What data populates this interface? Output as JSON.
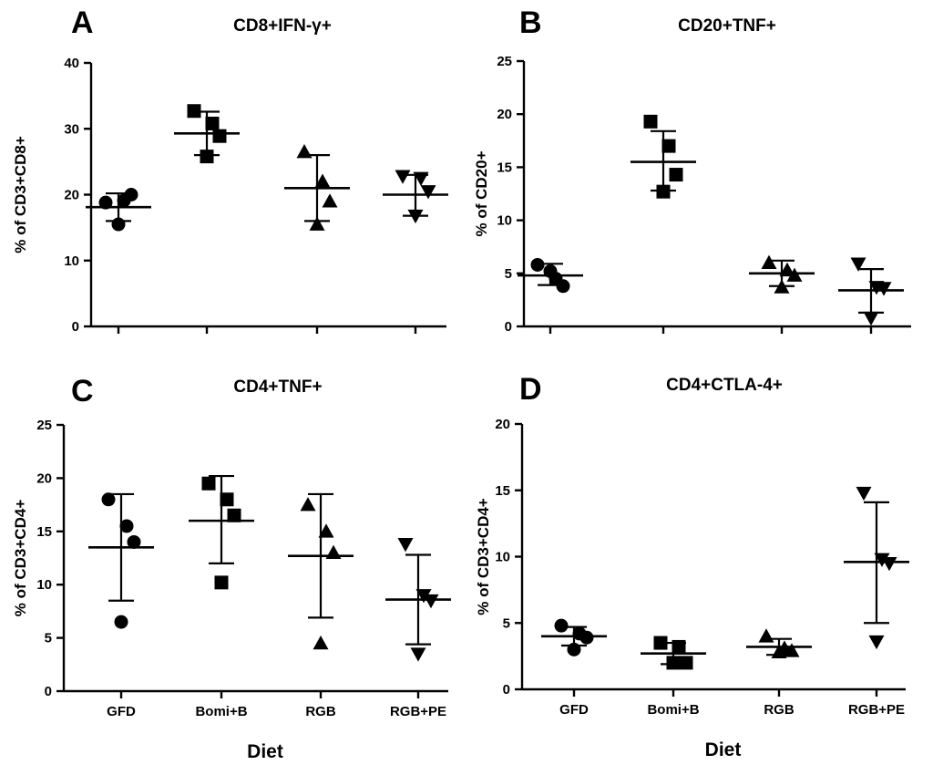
{
  "chart_data": [
    {
      "panel": "A",
      "type": "scatter",
      "title": "CD8+IFN-γ+",
      "ylabel": "% of CD3+CD8+",
      "xlabel": "",
      "ylim": [
        0,
        40
      ],
      "yticks": [
        0,
        10,
        20,
        30,
        40
      ],
      "categories": [
        "GFD",
        "Bomi+B",
        "RGB",
        "RGB+PE"
      ],
      "show_category_labels": false,
      "markers": [
        "circle",
        "square",
        "triangle-up",
        "triangle-down"
      ],
      "groups": [
        {
          "name": "GFD",
          "points": [
            18.8,
            19.1,
            20.0,
            15.5
          ],
          "mean": 18.1,
          "sd_low": 16.0,
          "sd_high": 20.2
        },
        {
          "name": "Bomi+B",
          "points": [
            32.7,
            30.8,
            28.9,
            25.8
          ],
          "mean": 29.3,
          "sd_low": 26.0,
          "sd_high": 32.6
        },
        {
          "name": "RGB",
          "points": [
            26.5,
            22.0,
            19.0,
            15.5
          ],
          "mean": 21.0,
          "sd_low": 16.0,
          "sd_high": 26.0
        },
        {
          "name": "RGB+PE",
          "points": [
            22.8,
            22.5,
            20.5,
            16.8
          ],
          "mean": 20.0,
          "sd_low": 16.8,
          "sd_high": 23.0
        }
      ]
    },
    {
      "panel": "B",
      "type": "scatter",
      "title": "CD20+TNF+",
      "ylabel": "% of CD20+",
      "xlabel": "",
      "ylim": [
        0,
        25
      ],
      "yticks": [
        0,
        5,
        10,
        15,
        20,
        25
      ],
      "categories": [
        "GFD",
        "Bomi+B",
        "RGB",
        "RGB+PE"
      ],
      "show_category_labels": false,
      "markers": [
        "circle",
        "square",
        "triangle-up",
        "triangle-down"
      ],
      "groups": [
        {
          "name": "GFD",
          "points": [
            5.8,
            4.5,
            3.8,
            5.2
          ],
          "mean": 4.8,
          "sd_low": 3.9,
          "sd_high": 5.9
        },
        {
          "name": "Bomi+B",
          "points": [
            19.3,
            17.0,
            14.3,
            12.7
          ],
          "mean": 15.5,
          "sd_low": 12.8,
          "sd_high": 18.4
        },
        {
          "name": "RGB",
          "points": [
            6.0,
            5.3,
            4.8,
            3.7
          ],
          "mean": 5.0,
          "sd_low": 3.8,
          "sd_high": 6.2
        },
        {
          "name": "RGB+PE",
          "points": [
            5.9,
            3.7,
            3.6,
            0.8
          ],
          "mean": 3.4,
          "sd_low": 1.3,
          "sd_high": 5.4
        }
      ]
    },
    {
      "panel": "C",
      "type": "scatter",
      "title": "CD4+TNF+",
      "ylabel": "% of CD3+CD4+",
      "xlabel": "Diet",
      "ylim": [
        0,
        25
      ],
      "yticks": [
        0,
        5,
        10,
        15,
        20,
        25
      ],
      "categories": [
        "GFD",
        "Bomi+B",
        "RGB",
        "RGB+PE"
      ],
      "show_category_labels": true,
      "markers": [
        "circle",
        "square",
        "triangle-up",
        "triangle-down"
      ],
      "groups": [
        {
          "name": "GFD",
          "points": [
            18.0,
            15.5,
            14.0,
            6.5
          ],
          "mean": 13.5,
          "sd_low": 8.5,
          "sd_high": 18.5
        },
        {
          "name": "Bomi+B",
          "points": [
            19.5,
            18.0,
            16.5,
            10.2
          ],
          "mean": 16.0,
          "sd_low": 12.0,
          "sd_high": 20.2
        },
        {
          "name": "RGB",
          "points": [
            17.5,
            15.0,
            13.0,
            4.5
          ],
          "mean": 12.7,
          "sd_low": 6.9,
          "sd_high": 18.5
        },
        {
          "name": "RGB+PE",
          "points": [
            13.8,
            9.0,
            8.5,
            3.5
          ],
          "mean": 8.6,
          "sd_low": 4.4,
          "sd_high": 12.8
        }
      ]
    },
    {
      "panel": "D",
      "type": "scatter",
      "title": "CD4+CTLA-4+",
      "ylabel": "% of CD3+CD4+",
      "xlabel": "Diet",
      "ylim": [
        0,
        20
      ],
      "yticks": [
        0,
        5,
        10,
        15,
        20
      ],
      "categories": [
        "GFD",
        "Bomi+B",
        "RGB",
        "RGB+PE"
      ],
      "show_category_labels": true,
      "markers": [
        "circle",
        "square",
        "triangle-up",
        "triangle-down"
      ],
      "groups": [
        {
          "name": "GFD",
          "points": [
            4.8,
            4.2,
            3.9,
            3.0
          ],
          "mean": 4.0,
          "sd_low": 3.3,
          "sd_high": 4.7
        },
        {
          "name": "Bomi+B",
          "points": [
            3.5,
            3.2,
            2.0,
            2.0
          ],
          "mean": 2.7,
          "sd_low": 1.9,
          "sd_high": 3.5
        },
        {
          "name": "RGB",
          "points": [
            4.0,
            3.1,
            2.9,
            2.8
          ],
          "mean": 3.2,
          "sd_low": 2.6,
          "sd_high": 3.8
        },
        {
          "name": "RGB+PE",
          "points": [
            14.8,
            9.8,
            9.5,
            3.6
          ],
          "mean": 9.6,
          "sd_low": 5.0,
          "sd_high": 14.1
        }
      ]
    }
  ]
}
